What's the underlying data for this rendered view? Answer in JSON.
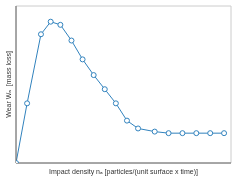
{
  "chart_data": {
    "type": "line",
    "xlabel": "Impact density nₐ [particles/(unit surface x time)]",
    "ylabel": "Wear Wₐ  [mass loss]",
    "x": [
      0,
      0.08,
      0.18,
      0.25,
      0.32,
      0.4,
      0.48,
      0.56,
      0.64,
      0.72,
      0.8,
      0.88,
      1.0,
      1.1,
      1.2,
      1.3,
      1.4,
      1.5
    ],
    "values": [
      0,
      0.38,
      0.82,
      0.9,
      0.88,
      0.78,
      0.66,
      0.56,
      0.47,
      0.38,
      0.27,
      0.22,
      0.2,
      0.19,
      0.19,
      0.19,
      0.19,
      0.19
    ],
    "xlim": [
      0,
      1.55
    ],
    "ylim": [
      0,
      1.0
    ],
    "xticks": [
      0,
      0.31,
      0.62,
      0.93,
      1.24,
      1.55
    ],
    "yticks": [
      0,
      0.25,
      0.5,
      0.75,
      1.0
    ],
    "grid": true,
    "tick_labels": false,
    "marker": "circle"
  }
}
